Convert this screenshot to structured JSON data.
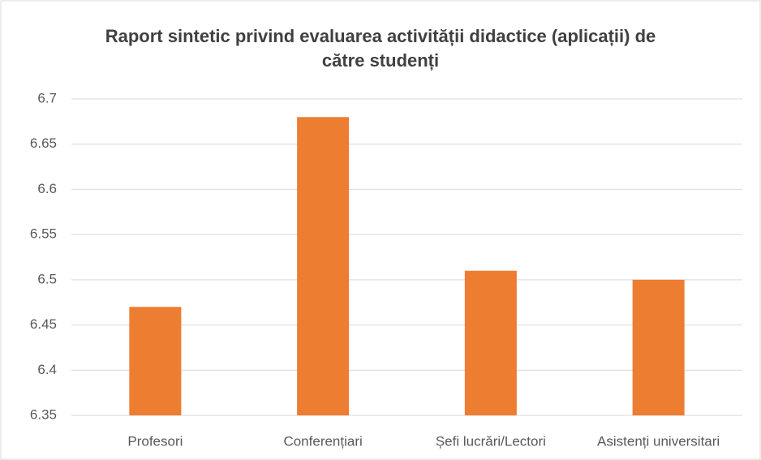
{
  "chart_data": {
    "type": "bar",
    "title": "Raport sintetic privind evaluarea activității didactice (aplicații) de către studenți",
    "categories": [
      "Profesori",
      "Conferențiari",
      "Șefi lucrări/Lectori",
      "Asistenți universitari"
    ],
    "values": [
      6.47,
      6.68,
      6.51,
      6.5
    ],
    "color": "#ed7d31",
    "ylim": [
      6.35,
      6.7
    ],
    "yticks": [
      6.35,
      6.4,
      6.45,
      6.5,
      6.55,
      6.6,
      6.65,
      6.7
    ],
    "grid": true
  }
}
